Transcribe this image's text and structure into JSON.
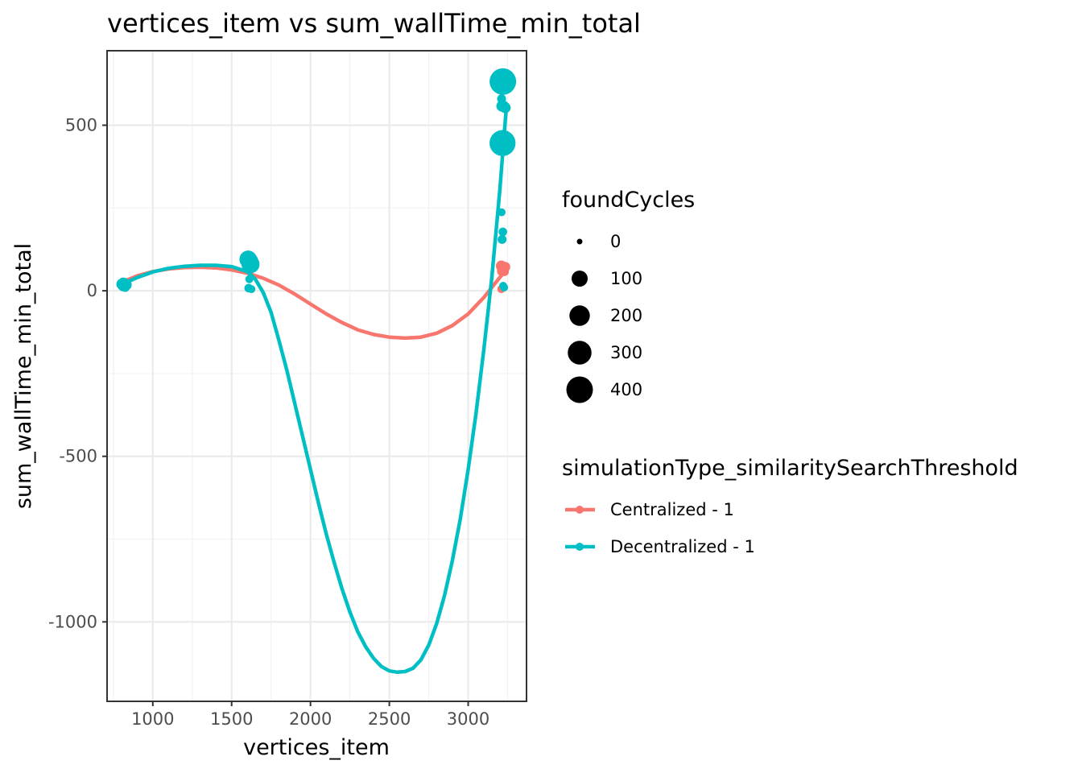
{
  "chart_data": {
    "type": "scatter",
    "title": "vertices_item  vs  sum_wallTime_min_total",
    "xlabel": "vertices_item",
    "ylabel": "sum_wallTime_min_total",
    "xlim": [
      710,
      3370
    ],
    "ylim": [
      -1240,
      725
    ],
    "x_ticks": [
      1000,
      1500,
      2000,
      2500,
      3000
    ],
    "x_tick_labels": [
      "1000",
      "1500",
      "2000",
      "2500",
      "3000"
    ],
    "y_ticks": [
      -1000,
      -500,
      0,
      500
    ],
    "y_tick_labels": [
      "-1000",
      "-500",
      "0",
      "500"
    ],
    "grid": true,
    "size_legend": {
      "title": "foundCycles",
      "entries": [
        {
          "label": "0",
          "value": 0
        },
        {
          "label": "100",
          "value": 100
        },
        {
          "label": "200",
          "value": 200
        },
        {
          "label": "300",
          "value": 300
        },
        {
          "label": "400",
          "value": 400
        }
      ]
    },
    "color_legend": {
      "title": "simulationType_similaritySearchThreshold",
      "placement": "right"
    },
    "series": [
      {
        "name": "Centralized - 1",
        "color": "#F8766D",
        "points": [
          {
            "x": 800,
            "y": 22,
            "size": 10
          },
          {
            "x": 810,
            "y": 18,
            "size": 8
          },
          {
            "x": 820,
            "y": 25,
            "size": 12
          },
          {
            "x": 830,
            "y": 15,
            "size": 6
          },
          {
            "x": 3210,
            "y": 75,
            "size": 25
          },
          {
            "x": 3215,
            "y": 60,
            "size": 20
          },
          {
            "x": 3220,
            "y": 70,
            "size": 15
          },
          {
            "x": 3225,
            "y": 65,
            "size": 22
          },
          {
            "x": 3230,
            "y": 58,
            "size": 10
          },
          {
            "x": 3235,
            "y": 72,
            "size": 18
          },
          {
            "x": 3210,
            "y": 5,
            "size": 5
          }
        ],
        "smooth": [
          {
            "x": 800,
            "y": 25
          },
          {
            "x": 900,
            "y": 45
          },
          {
            "x": 1000,
            "y": 58
          },
          {
            "x": 1100,
            "y": 66
          },
          {
            "x": 1200,
            "y": 70
          },
          {
            "x": 1300,
            "y": 71
          },
          {
            "x": 1400,
            "y": 69
          },
          {
            "x": 1500,
            "y": 63
          },
          {
            "x": 1600,
            "y": 53
          },
          {
            "x": 1700,
            "y": 38
          },
          {
            "x": 1800,
            "y": 17
          },
          {
            "x": 1900,
            "y": -10
          },
          {
            "x": 2000,
            "y": -40
          },
          {
            "x": 2100,
            "y": -70
          },
          {
            "x": 2200,
            "y": -96
          },
          {
            "x": 2300,
            "y": -118
          },
          {
            "x": 2400,
            "y": -132
          },
          {
            "x": 2500,
            "y": -140
          },
          {
            "x": 2600,
            "y": -143
          },
          {
            "x": 2700,
            "y": -140
          },
          {
            "x": 2800,
            "y": -128
          },
          {
            "x": 2900,
            "y": -105
          },
          {
            "x": 3000,
            "y": -70
          },
          {
            "x": 3100,
            "y": -20
          },
          {
            "x": 3150,
            "y": 10
          },
          {
            "x": 3200,
            "y": 40
          },
          {
            "x": 3240,
            "y": 62
          }
        ]
      },
      {
        "name": "Decentralized - 1",
        "color": "#00BFC4",
        "points": [
          {
            "x": 805,
            "y": 20,
            "size": 30
          },
          {
            "x": 812,
            "y": 14,
            "size": 20
          },
          {
            "x": 818,
            "y": 25,
            "size": 15
          },
          {
            "x": 825,
            "y": 10,
            "size": 10
          },
          {
            "x": 832,
            "y": 18,
            "size": 25
          },
          {
            "x": 810,
            "y": 28,
            "size": 5
          },
          {
            "x": 1605,
            "y": 95,
            "size": 130
          },
          {
            "x": 1610,
            "y": 85,
            "size": 90
          },
          {
            "x": 1615,
            "y": 90,
            "size": 110
          },
          {
            "x": 1620,
            "y": 80,
            "size": 140
          },
          {
            "x": 1612,
            "y": 35,
            "size": 5
          },
          {
            "x": 1608,
            "y": 8,
            "size": 8
          },
          {
            "x": 1625,
            "y": 5,
            "size": 5
          },
          {
            "x": 1618,
            "y": 70,
            "size": 10
          },
          {
            "x": 3220,
            "y": 632,
            "size": 400
          },
          {
            "x": 3218,
            "y": 446,
            "size": 380
          },
          {
            "x": 3212,
            "y": 580,
            "size": 10
          },
          {
            "x": 3215,
            "y": 558,
            "size": 30
          },
          {
            "x": 3225,
            "y": 560,
            "size": 15
          },
          {
            "x": 3235,
            "y": 553,
            "size": 25
          },
          {
            "x": 3212,
            "y": 237,
            "size": 5
          },
          {
            "x": 3220,
            "y": 178,
            "size": 8
          },
          {
            "x": 3215,
            "y": 155,
            "size": 10
          },
          {
            "x": 3222,
            "y": 15,
            "size": 5
          },
          {
            "x": 3228,
            "y": 10,
            "size": 5
          }
        ],
        "smooth": [
          {
            "x": 800,
            "y": 18
          },
          {
            "x": 900,
            "y": 40
          },
          {
            "x": 1000,
            "y": 57
          },
          {
            "x": 1100,
            "y": 68
          },
          {
            "x": 1200,
            "y": 74
          },
          {
            "x": 1300,
            "y": 77
          },
          {
            "x": 1400,
            "y": 77
          },
          {
            "x": 1500,
            "y": 73
          },
          {
            "x": 1600,
            "y": 58
          },
          {
            "x": 1650,
            "y": 35
          },
          {
            "x": 1700,
            "y": -5
          },
          {
            "x": 1750,
            "y": -65
          },
          {
            "x": 1800,
            "y": -150
          },
          {
            "x": 1850,
            "y": -240
          },
          {
            "x": 1900,
            "y": -340
          },
          {
            "x": 1950,
            "y": -440
          },
          {
            "x": 2000,
            "y": -540
          },
          {
            "x": 2050,
            "y": -640
          },
          {
            "x": 2100,
            "y": -735
          },
          {
            "x": 2150,
            "y": -820
          },
          {
            "x": 2200,
            "y": -900
          },
          {
            "x": 2250,
            "y": -970
          },
          {
            "x": 2300,
            "y": -1030
          },
          {
            "x": 2350,
            "y": -1075
          },
          {
            "x": 2400,
            "y": -1110
          },
          {
            "x": 2450,
            "y": -1135
          },
          {
            "x": 2500,
            "y": -1148
          },
          {
            "x": 2550,
            "y": -1152
          },
          {
            "x": 2600,
            "y": -1150
          },
          {
            "x": 2650,
            "y": -1140
          },
          {
            "x": 2700,
            "y": -1115
          },
          {
            "x": 2750,
            "y": -1070
          },
          {
            "x": 2800,
            "y": -1005
          },
          {
            "x": 2850,
            "y": -920
          },
          {
            "x": 2900,
            "y": -815
          },
          {
            "x": 2950,
            "y": -690
          },
          {
            "x": 3000,
            "y": -540
          },
          {
            "x": 3050,
            "y": -370
          },
          {
            "x": 3100,
            "y": -175
          },
          {
            "x": 3150,
            "y": 40
          },
          {
            "x": 3200,
            "y": 300
          },
          {
            "x": 3240,
            "y": 540
          }
        ]
      }
    ]
  }
}
